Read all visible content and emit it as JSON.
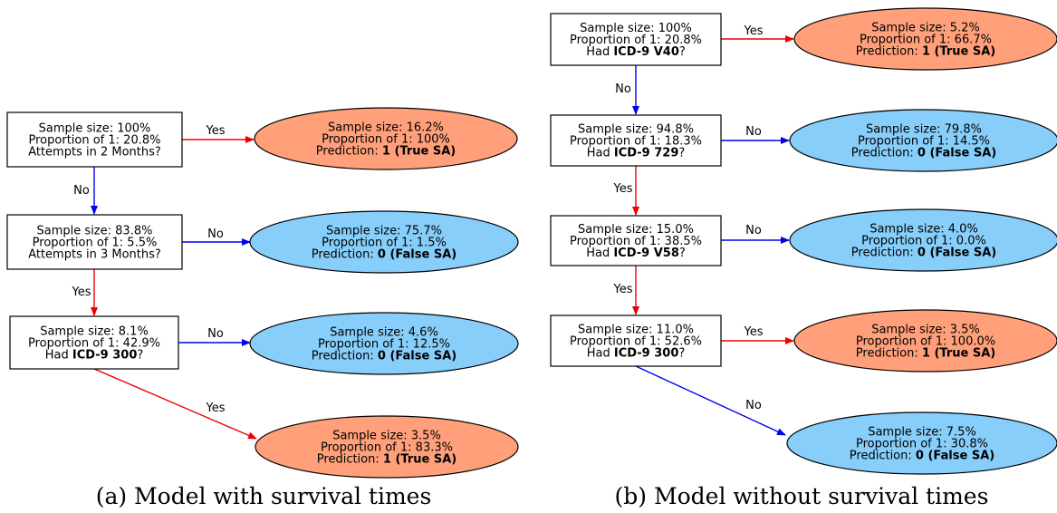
{
  "colors": {
    "yes_edge": "#ee0000",
    "no_edge": "#0000ee",
    "true_leaf_fill": "#ffa07a",
    "false_leaf_fill": "#87cefa",
    "box_stroke": "#000000"
  },
  "left": {
    "caption": "(a) Model with survival times",
    "decisions": [
      {
        "lines": [
          {
            "parts": [
              {
                "t": "Sample size: 100%"
              }
            ]
          },
          {
            "parts": [
              {
                "t": "Proportion of 1: 20.8%"
              }
            ]
          },
          {
            "parts": [
              {
                "t": "Attempts in 2 Months?"
              }
            ]
          }
        ]
      },
      {
        "lines": [
          {
            "parts": [
              {
                "t": "Sample size: 83.8%"
              }
            ]
          },
          {
            "parts": [
              {
                "t": "Proportion of 1: 5.5%"
              }
            ]
          },
          {
            "parts": [
              {
                "t": "Attempts in 3 Months?"
              }
            ]
          }
        ]
      },
      {
        "lines": [
          {
            "parts": [
              {
                "t": "Sample size: 8.1%"
              }
            ]
          },
          {
            "parts": [
              {
                "t": "Proportion of 1: 42.9%"
              }
            ]
          },
          {
            "parts": [
              {
                "t": "Had "
              },
              {
                "t": "ICD-9 300",
                "b": true
              },
              {
                "t": "?"
              }
            ]
          }
        ]
      }
    ],
    "leaves": [
      {
        "kind": "true",
        "lines": [
          {
            "parts": [
              {
                "t": "Sample size: 16.2%"
              }
            ]
          },
          {
            "parts": [
              {
                "t": "Proportion of 1: 100%"
              }
            ]
          },
          {
            "parts": [
              {
                "t": "Prediction: "
              },
              {
                "t": "1 (True SA)",
                "b": true
              }
            ]
          }
        ]
      },
      {
        "kind": "false",
        "lines": [
          {
            "parts": [
              {
                "t": "Sample size: 75.7%"
              }
            ]
          },
          {
            "parts": [
              {
                "t": "Proportion of 1: 1.5%"
              }
            ]
          },
          {
            "parts": [
              {
                "t": "Prediction: "
              },
              {
                "t": "0 (False SA)",
                "b": true
              }
            ]
          }
        ]
      },
      {
        "kind": "false",
        "lines": [
          {
            "parts": [
              {
                "t": "Sample size: 4.6%"
              }
            ]
          },
          {
            "parts": [
              {
                "t": "Proportion of 1: 12.5%"
              }
            ]
          },
          {
            "parts": [
              {
                "t": "Prediction: "
              },
              {
                "t": "0 (False SA)",
                "b": true
              }
            ]
          }
        ]
      },
      {
        "kind": "true",
        "lines": [
          {
            "parts": [
              {
                "t": "Sample size: 3.5%"
              }
            ]
          },
          {
            "parts": [
              {
                "t": "Proportion of 1: 83.3%"
              }
            ]
          },
          {
            "parts": [
              {
                "t": "Prediction: "
              },
              {
                "t": "1 (True SA)",
                "b": true
              }
            ]
          }
        ]
      }
    ],
    "edges": [
      {
        "from": "d0",
        "to": "l0",
        "label": "Yes",
        "kind": "yes"
      },
      {
        "from": "d0",
        "to": "d1",
        "label": "No",
        "kind": "no"
      },
      {
        "from": "d1",
        "to": "l1",
        "label": "No",
        "kind": "no"
      },
      {
        "from": "d1",
        "to": "d2",
        "label": "Yes",
        "kind": "yes"
      },
      {
        "from": "d2",
        "to": "l2",
        "label": "No",
        "kind": "no"
      },
      {
        "from": "d2",
        "to": "l3",
        "label": "Yes",
        "kind": "yes"
      }
    ]
  },
  "right": {
    "caption": "(b) Model without survival times",
    "decisions": [
      {
        "lines": [
          {
            "parts": [
              {
                "t": "Sample size: 100%"
              }
            ]
          },
          {
            "parts": [
              {
                "t": "Proportion of 1: 20.8%"
              }
            ]
          },
          {
            "parts": [
              {
                "t": "Had "
              },
              {
                "t": "ICD-9 V40",
                "b": true
              },
              {
                "t": "?"
              }
            ]
          }
        ]
      },
      {
        "lines": [
          {
            "parts": [
              {
                "t": "Sample size: 94.8%"
              }
            ]
          },
          {
            "parts": [
              {
                "t": "Proportion of 1: 18.3%"
              }
            ]
          },
          {
            "parts": [
              {
                "t": "Had "
              },
              {
                "t": "ICD-9 729",
                "b": true
              },
              {
                "t": "?"
              }
            ]
          }
        ]
      },
      {
        "lines": [
          {
            "parts": [
              {
                "t": "Sample size: 15.0%"
              }
            ]
          },
          {
            "parts": [
              {
                "t": "Proportion of 1: 38.5%"
              }
            ]
          },
          {
            "parts": [
              {
                "t": "Had "
              },
              {
                "t": "ICD-9 V58",
                "b": true
              },
              {
                "t": "?"
              }
            ]
          }
        ]
      },
      {
        "lines": [
          {
            "parts": [
              {
                "t": "Sample size: 11.0%"
              }
            ]
          },
          {
            "parts": [
              {
                "t": "Proportion of 1: 52.6%"
              }
            ]
          },
          {
            "parts": [
              {
                "t": "Had "
              },
              {
                "t": "ICD-9 300",
                "b": true
              },
              {
                "t": "?"
              }
            ]
          }
        ]
      }
    ],
    "leaves": [
      {
        "kind": "true",
        "lines": [
          {
            "parts": [
              {
                "t": "Sample size: 5.2%"
              }
            ]
          },
          {
            "parts": [
              {
                "t": "Proportion of 1: 66.7%"
              }
            ]
          },
          {
            "parts": [
              {
                "t": "Prediction: "
              },
              {
                "t": "1 (True SA)",
                "b": true
              }
            ]
          }
        ]
      },
      {
        "kind": "false",
        "lines": [
          {
            "parts": [
              {
                "t": "Sample size: 79.8%"
              }
            ]
          },
          {
            "parts": [
              {
                "t": "Proportion of 1: 14.5%"
              }
            ]
          },
          {
            "parts": [
              {
                "t": "Prediction: "
              },
              {
                "t": "0 (False SA)",
                "b": true
              }
            ]
          }
        ]
      },
      {
        "kind": "false",
        "lines": [
          {
            "parts": [
              {
                "t": "Sample size: 4.0%"
              }
            ]
          },
          {
            "parts": [
              {
                "t": "Proportion of 1: 0.0%"
              }
            ]
          },
          {
            "parts": [
              {
                "t": "Prediction: "
              },
              {
                "t": "0 (False SA)",
                "b": true
              }
            ]
          }
        ]
      },
      {
        "kind": "true",
        "lines": [
          {
            "parts": [
              {
                "t": "Sample size: 3.5%"
              }
            ]
          },
          {
            "parts": [
              {
                "t": "Proportion of 1: 100.0%"
              }
            ]
          },
          {
            "parts": [
              {
                "t": "Prediction: "
              },
              {
                "t": "1 (True SA)",
                "b": true
              }
            ]
          }
        ]
      },
      {
        "kind": "false",
        "lines": [
          {
            "parts": [
              {
                "t": "Sample size: 7.5%"
              }
            ]
          },
          {
            "parts": [
              {
                "t": "Proportion of 1: 30.8%"
              }
            ]
          },
          {
            "parts": [
              {
                "t": "Prediction: "
              },
              {
                "t": "0 (False SA)",
                "b": true
              }
            ]
          }
        ]
      }
    ],
    "edges": [
      {
        "from": "d0",
        "to": "l0",
        "label": "Yes",
        "kind": "yes"
      },
      {
        "from": "d0",
        "to": "d1",
        "label": "No",
        "kind": "no"
      },
      {
        "from": "d1",
        "to": "l1",
        "label": "No",
        "kind": "no"
      },
      {
        "from": "d1",
        "to": "d2",
        "label": "Yes",
        "kind": "yes"
      },
      {
        "from": "d2",
        "to": "l2",
        "label": "No",
        "kind": "no"
      },
      {
        "from": "d2",
        "to": "d3",
        "label": "Yes",
        "kind": "yes"
      },
      {
        "from": "d3",
        "to": "l3",
        "label": "Yes",
        "kind": "yes"
      },
      {
        "from": "d3",
        "to": "l4",
        "label": "No",
        "kind": "no"
      }
    ]
  }
}
